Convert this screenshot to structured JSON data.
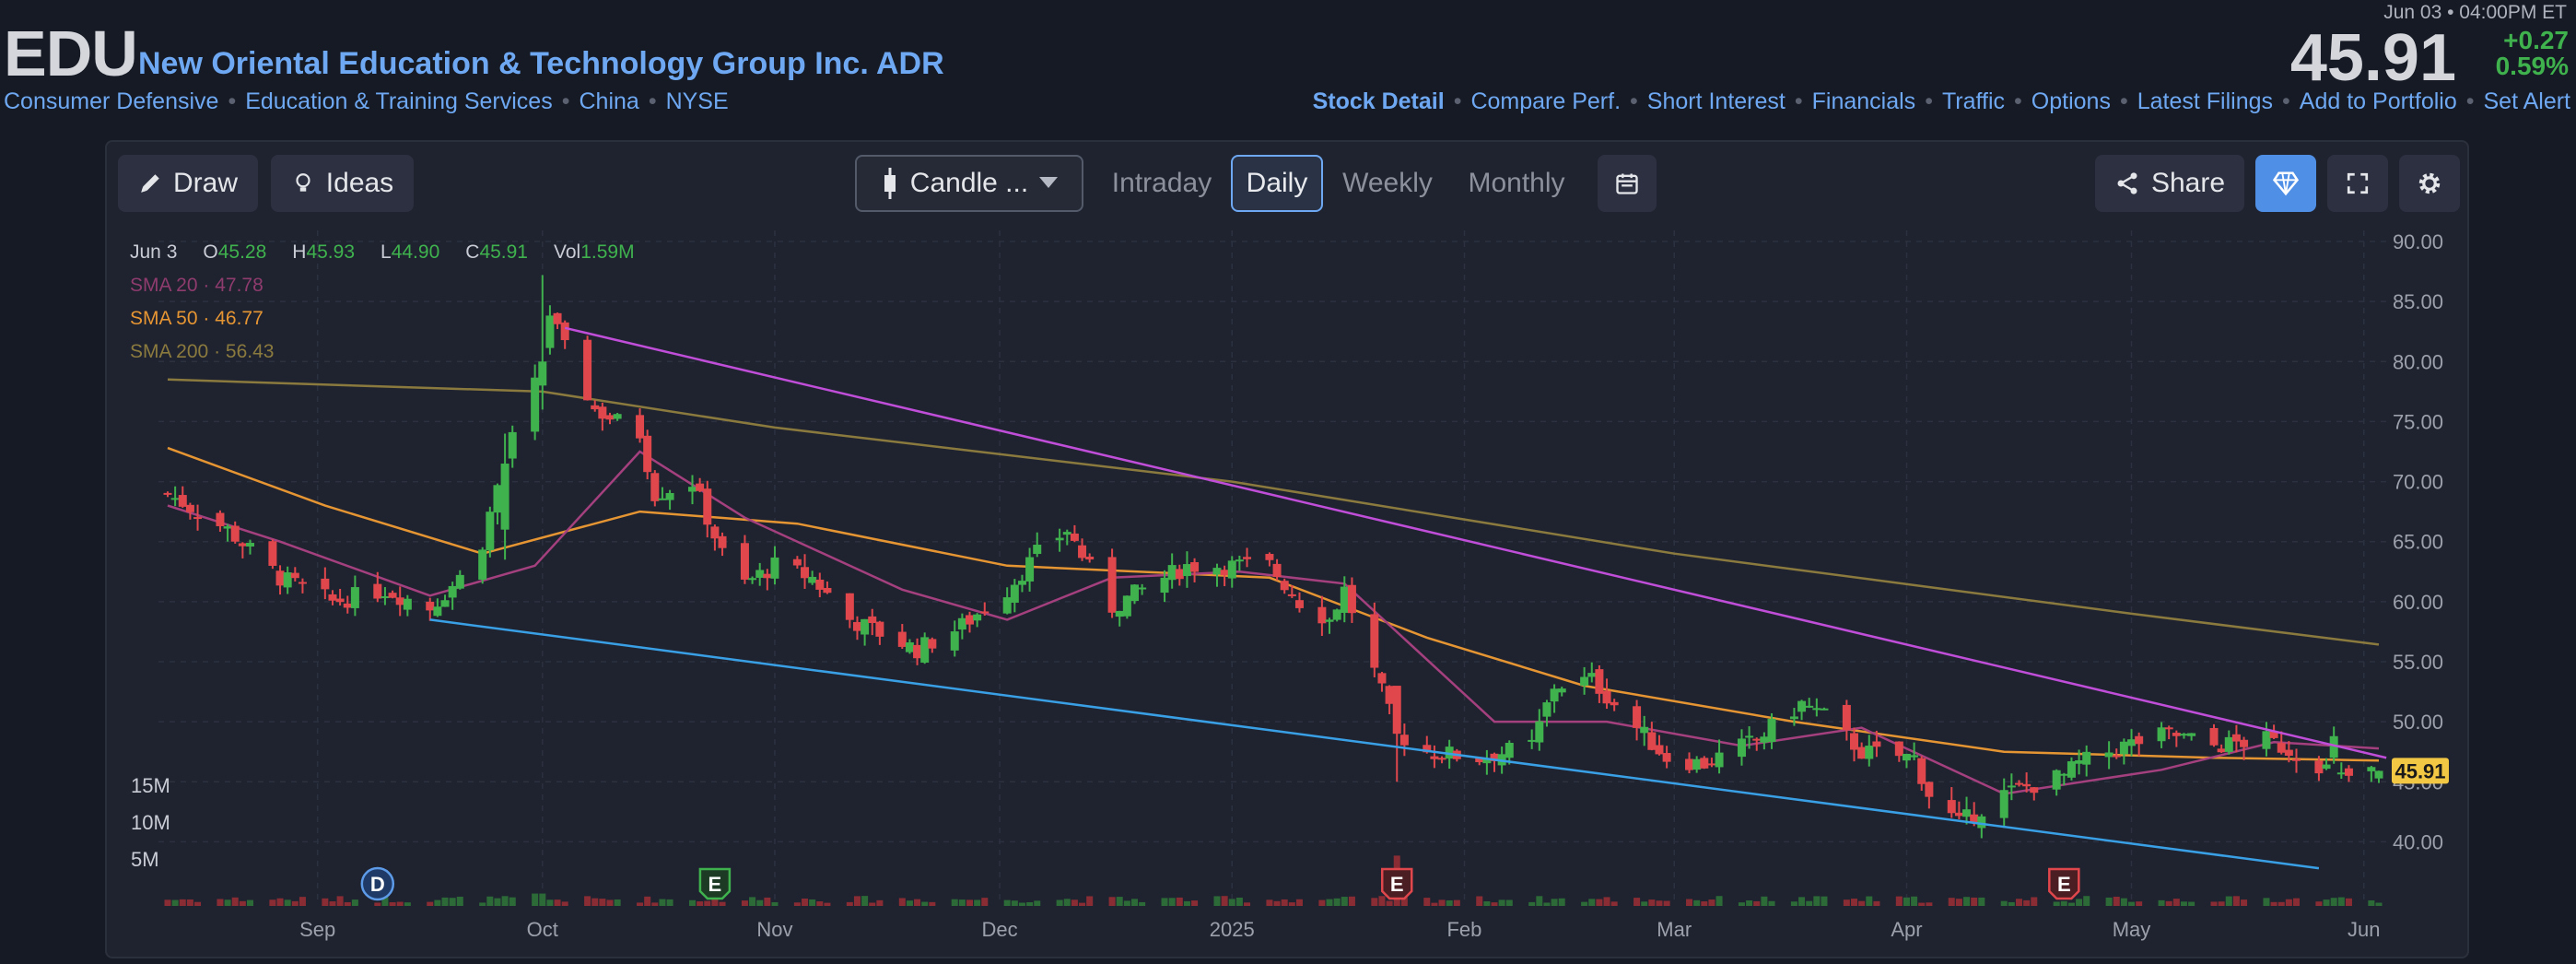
{
  "header": {
    "ticker": "EDU",
    "company": "New Oriental Education & Technology Group Inc. ADR",
    "sectors": [
      "Consumer Defensive",
      "Education & Training Services",
      "China",
      "NYSE"
    ],
    "timestamp": "Jun 03 • 04:00PM ET",
    "price": "45.91",
    "change": "+0.27",
    "change_pct": "0.59%",
    "nav": [
      "Stock Detail",
      "Compare Perf.",
      "Short Interest",
      "Financials",
      "Traffic",
      "Options",
      "Latest Filings",
      "Add to Portfolio",
      "Set Alert"
    ]
  },
  "toolbar": {
    "draw": "Draw",
    "ideas": "Ideas",
    "chart_type": "Candle ...",
    "periods": [
      "Intraday",
      "Daily",
      "Weekly",
      "Monthly"
    ],
    "active_period": "Daily",
    "share": "Share"
  },
  "colors": {
    "up": "#3fb24e",
    "down": "#e0474c",
    "sma20": "#a4407e",
    "sma50": "#e69533",
    "sma200": "#8b7a3e",
    "trend_upper": "#c04ed8",
    "trend_lower": "#3aa0e6",
    "link": "#6ea8f2",
    "price_tag": "#f2c744"
  },
  "chart_data": {
    "type": "candlestick",
    "legend": {
      "date": "Jun 3",
      "open": "45.28",
      "high": "45.93",
      "low": "44.90",
      "close": "45.91",
      "vol": "1.59M",
      "sma20": "47.78",
      "sma50": "46.77",
      "sma200": "56.43"
    },
    "series_labels": {
      "open": "O",
      "high": "H",
      "low": "L",
      "close": "C",
      "vol": "Vol",
      "sma20": "SMA 20",
      "sma50": "SMA 50",
      "sma200": "SMA 200"
    },
    "y_ticks": [
      "90.00",
      "85.00",
      "80.00",
      "75.00",
      "70.00",
      "65.00",
      "60.00",
      "55.00",
      "50.00",
      "45.00",
      "40.00"
    ],
    "ylim": [
      37.5,
      90.0
    ],
    "volume_ticks": [
      "15M",
      "10M",
      "5M"
    ],
    "x_ticks": [
      {
        "label": "Sep",
        "date": "2024-09-01"
      },
      {
        "label": "Oct",
        "date": "2024-10-01"
      },
      {
        "label": "Nov",
        "date": "2024-11-01"
      },
      {
        "label": "Dec",
        "date": "2024-12-01"
      },
      {
        "label": "2025",
        "date": "2025-01-01"
      },
      {
        "label": "Feb",
        "date": "2025-02-01"
      },
      {
        "label": "Mar",
        "date": "2025-03-01"
      },
      {
        "label": "Apr",
        "date": "2025-04-01"
      },
      {
        "label": "May",
        "date": "2025-05-01"
      },
      {
        "label": "Jun",
        "date": "2025-06-01"
      }
    ],
    "last_price": "45.91",
    "anchors": [
      {
        "date": "2024-08-12",
        "close": 69.0
      },
      {
        "date": "2024-08-20",
        "close": 66.0
      },
      {
        "date": "2024-08-27",
        "close": 62.0
      },
      {
        "date": "2024-09-03",
        "close": 60.0
      },
      {
        "date": "2024-09-10",
        "close": 61.0
      },
      {
        "date": "2024-09-16",
        "close": 59.5
      },
      {
        "date": "2024-09-20",
        "close": 62.0
      },
      {
        "date": "2024-09-23",
        "close": 65.0
      },
      {
        "date": "2024-09-26",
        "close": 72.0
      },
      {
        "date": "2024-09-30",
        "close": 78.0
      },
      {
        "date": "2024-10-02",
        "close": 84.0
      },
      {
        "date": "2024-10-04",
        "close": 81.0
      },
      {
        "date": "2024-10-08",
        "close": 76.0
      },
      {
        "date": "2024-10-14",
        "close": 74.0
      },
      {
        "date": "2024-10-16",
        "close": 69.0
      },
      {
        "date": "2024-10-21",
        "close": 70.0
      },
      {
        "date": "2024-10-25",
        "close": 64.0
      },
      {
        "date": "2024-10-28",
        "close": 61.5
      },
      {
        "date": "2024-11-01",
        "close": 63.0
      },
      {
        "date": "2024-11-06",
        "close": 62.0
      },
      {
        "date": "2024-11-11",
        "close": 58.5
      },
      {
        "date": "2024-11-20",
        "close": 56.0
      },
      {
        "date": "2024-11-26",
        "close": 58.0
      },
      {
        "date": "2024-12-02",
        "close": 61.0
      },
      {
        "date": "2024-12-06",
        "close": 64.0
      },
      {
        "date": "2024-12-10",
        "close": 66.0
      },
      {
        "date": "2024-12-16",
        "close": 59.5
      },
      {
        "date": "2024-12-20",
        "close": 61.0
      },
      {
        "date": "2024-12-26",
        "close": 63.0
      },
      {
        "date": "2025-01-06",
        "close": 63.0
      },
      {
        "date": "2025-01-10",
        "close": 60.0
      },
      {
        "date": "2025-01-14",
        "close": 58.5
      },
      {
        "date": "2025-01-16",
        "close": 61.0
      },
      {
        "date": "2025-01-23",
        "close": 49.0
      },
      {
        "date": "2025-01-27",
        "close": 47.5
      },
      {
        "date": "2025-02-03",
        "close": 47.0
      },
      {
        "date": "2025-02-10",
        "close": 48.0
      },
      {
        "date": "2025-02-13",
        "close": 53.0
      },
      {
        "date": "2025-02-18",
        "close": 53.5
      },
      {
        "date": "2025-02-24",
        "close": 49.5
      },
      {
        "date": "2025-02-28",
        "close": 47.0
      },
      {
        "date": "2025-03-05",
        "close": 46.5
      },
      {
        "date": "2025-03-12",
        "close": 48.5
      },
      {
        "date": "2025-03-18",
        "close": 51.5
      },
      {
        "date": "2025-03-21",
        "close": 50.5
      },
      {
        "date": "2025-03-26",
        "close": 47.5
      },
      {
        "date": "2025-04-02",
        "close": 47.0
      },
      {
        "date": "2025-04-04",
        "close": 44.0
      },
      {
        "date": "2025-04-08",
        "close": 41.5
      },
      {
        "date": "2025-04-14",
        "close": 44.0
      },
      {
        "date": "2025-04-22",
        "close": 45.5
      },
      {
        "date": "2025-04-24",
        "close": 46.5
      },
      {
        "date": "2025-04-30",
        "close": 48.0
      },
      {
        "date": "2025-05-06",
        "close": 49.0
      },
      {
        "date": "2025-05-12",
        "close": 48.0
      },
      {
        "date": "2025-05-19",
        "close": 48.5
      },
      {
        "date": "2025-05-26",
        "close": 46.5
      },
      {
        "date": "2025-05-29",
        "close": 45.3
      },
      {
        "date": "2025-06-03",
        "close": 45.91
      }
    ],
    "sma20": [
      {
        "date": "2024-08-12",
        "value": 68.0
      },
      {
        "date": "2024-08-27",
        "value": 65.0
      },
      {
        "date": "2024-09-16",
        "value": 60.5
      },
      {
        "date": "2024-09-30",
        "value": 63.0
      },
      {
        "date": "2024-10-14",
        "value": 72.5
      },
      {
        "date": "2024-10-28",
        "value": 67.0
      },
      {
        "date": "2024-11-18",
        "value": 61.0
      },
      {
        "date": "2024-12-02",
        "value": 58.5
      },
      {
        "date": "2024-12-16",
        "value": 62.0
      },
      {
        "date": "2025-01-02",
        "value": 62.5
      },
      {
        "date": "2025-01-16",
        "value": 61.5
      },
      {
        "date": "2025-02-05",
        "value": 50.0
      },
      {
        "date": "2025-02-20",
        "value": 50.0
      },
      {
        "date": "2025-03-10",
        "value": 48.0
      },
      {
        "date": "2025-03-26",
        "value": 49.5
      },
      {
        "date": "2025-04-14",
        "value": 44.0
      },
      {
        "date": "2025-05-05",
        "value": 46.0
      },
      {
        "date": "2025-05-20",
        "value": 48.3
      },
      {
        "date": "2025-06-03",
        "value": 47.78
      }
    ],
    "sma50": [
      {
        "date": "2024-08-12",
        "value": 72.8
      },
      {
        "date": "2024-09-02",
        "value": 68.0
      },
      {
        "date": "2024-09-23",
        "value": 64.0
      },
      {
        "date": "2024-10-14",
        "value": 67.5
      },
      {
        "date": "2024-11-04",
        "value": 66.5
      },
      {
        "date": "2024-12-02",
        "value": 63.0
      },
      {
        "date": "2025-01-06",
        "value": 62.0
      },
      {
        "date": "2025-01-27",
        "value": 57.0
      },
      {
        "date": "2025-02-17",
        "value": 53.0
      },
      {
        "date": "2025-03-17",
        "value": 50.0
      },
      {
        "date": "2025-04-14",
        "value": 47.5
      },
      {
        "date": "2025-05-12",
        "value": 47.0
      },
      {
        "date": "2025-06-03",
        "value": 46.77
      }
    ],
    "sma200": [
      {
        "date": "2024-08-12",
        "value": 78.5
      },
      {
        "date": "2024-10-01",
        "value": 77.5
      },
      {
        "date": "2024-11-01",
        "value": 74.5
      },
      {
        "date": "2025-01-01",
        "value": 70.0
      },
      {
        "date": "2025-03-01",
        "value": 64.0
      },
      {
        "date": "2025-05-01",
        "value": 59.0
      },
      {
        "date": "2025-06-03",
        "value": 56.43
      }
    ],
    "trendlines": [
      {
        "from": {
          "date": "2024-10-04",
          "value": 82.8
        },
        "to": {
          "date": "2025-06-04",
          "value": 47.0
        }
      },
      {
        "from": {
          "date": "2024-09-16",
          "value": 58.5
        },
        "to": {
          "date": "2025-05-26",
          "value": 37.8
        }
      }
    ],
    "events": [
      {
        "label": "D",
        "date": "2024-09-09"
      },
      {
        "label": "E",
        "date": "2024-10-24"
      },
      {
        "label": "E",
        "date": "2025-01-23"
      },
      {
        "label": "E",
        "date": "2025-04-22"
      }
    ]
  }
}
